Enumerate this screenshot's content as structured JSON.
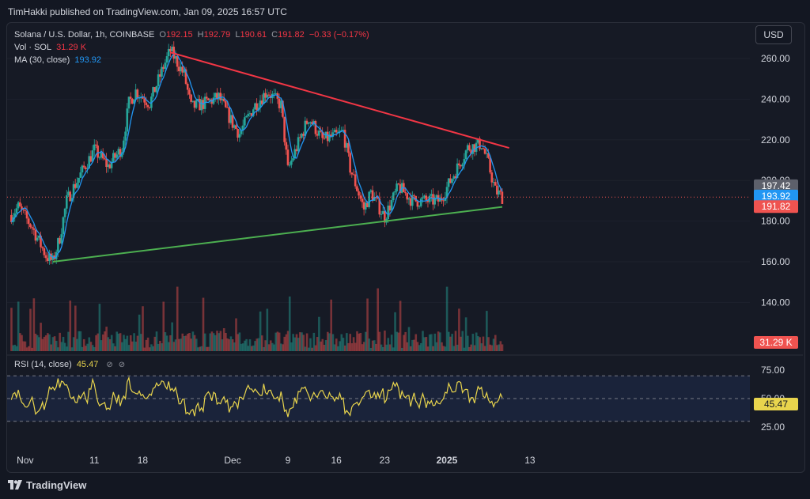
{
  "publisher_line": "TimHakki published on TradingView.com, Jan 09, 2025 16:57 UTC",
  "legend": {
    "symbol": "Solana / U.S. Dollar, 1h, COINBASE",
    "o_label": "O",
    "o_value": "192.15",
    "h_label": "H",
    "h_value": "192.79",
    "l_label": "L",
    "l_value": "190.61",
    "c_label": "C",
    "c_value": "191.82",
    "change": "−0.33 (−0.17%)",
    "vol_label": "Vol · SOL",
    "vol_value": "31.29 K",
    "ma_label": "MA (30, close)",
    "ma_value": "193.92",
    "rsi_label": "RSI (14, close)",
    "rsi_value": "45.47"
  },
  "currency_button": "USD",
  "price_badges": {
    "high_line": "197.42",
    "ma": "193.92",
    "last": "191.82",
    "volume": "31.29 K",
    "rsi": "45.47"
  },
  "colors": {
    "background": "#131722",
    "up": "#26a69a",
    "down": "#ef5350",
    "ma": "#2196f3",
    "resistance": "#f23645",
    "support": "#4caf50",
    "rsi": "#e8d44d",
    "rsi_band": "#1e2a4a"
  },
  "footer_brand": "TradingView",
  "chart_data": {
    "type": "candlestick",
    "price_axis": {
      "ticks": [
        "260.00",
        "240.00",
        "220.00",
        "200.00",
        "180.00",
        "160.00",
        "140.00"
      ],
      "range": [
        131,
        266
      ]
    },
    "rsi_axis": {
      "ticks": [
        "75.00",
        "50.00",
        "25.00"
      ],
      "upper_band": 70,
      "middle": 50,
      "lower_band": 30
    },
    "time_axis": [
      "Nov",
      "11",
      "18",
      "Dec",
      "9",
      "16",
      "23",
      "2025",
      "13"
    ],
    "price_keypoints": [
      {
        "t": "Oct 30",
        "p": 183
      },
      {
        "t": "Oct 31",
        "p": 187
      },
      {
        "t": "Nov 02",
        "p": 177
      },
      {
        "t": "Nov 04",
        "p": 163
      },
      {
        "t": "Nov 05",
        "p": 160
      },
      {
        "t": "Nov 06",
        "p": 172
      },
      {
        "t": "Nov 07",
        "p": 190
      },
      {
        "t": "Nov 09",
        "p": 203
      },
      {
        "t": "Nov 11",
        "p": 215
      },
      {
        "t": "Nov 13",
        "p": 207
      },
      {
        "t": "Nov 15",
        "p": 216
      },
      {
        "t": "Nov 16",
        "p": 238
      },
      {
        "t": "Nov 17",
        "p": 244
      },
      {
        "t": "Nov 19",
        "p": 238
      },
      {
        "t": "Nov 21",
        "p": 256
      },
      {
        "t": "Nov 22",
        "p": 264
      },
      {
        "t": "Nov 24",
        "p": 252
      },
      {
        "t": "Nov 25",
        "p": 236
      },
      {
        "t": "Nov 27",
        "p": 238
      },
      {
        "t": "Nov 29",
        "p": 241
      },
      {
        "t": "Dec 01",
        "p": 228
      },
      {
        "t": "Dec 02",
        "p": 223
      },
      {
        "t": "Dec 04",
        "p": 236
      },
      {
        "t": "Dec 06",
        "p": 244
      },
      {
        "t": "Dec 08",
        "p": 237
      },
      {
        "t": "Dec 09",
        "p": 205
      },
      {
        "t": "Dec 10",
        "p": 214
      },
      {
        "t": "Dec 12",
        "p": 231
      },
      {
        "t": "Dec 14",
        "p": 220
      },
      {
        "t": "Dec 16",
        "p": 222
      },
      {
        "t": "Dec 17",
        "p": 224
      },
      {
        "t": "Dec 18",
        "p": 206
      },
      {
        "t": "Dec 20",
        "p": 186
      },
      {
        "t": "Dec 21",
        "p": 194
      },
      {
        "t": "Dec 23",
        "p": 182
      },
      {
        "t": "Dec 25",
        "p": 197
      },
      {
        "t": "Dec 27",
        "p": 190
      },
      {
        "t": "Dec 29",
        "p": 190
      },
      {
        "t": "Dec 31",
        "p": 190
      },
      {
        "t": "Jan 02",
        "p": 203
      },
      {
        "t": "Jan 04",
        "p": 216
      },
      {
        "t": "Jan 06",
        "p": 218
      },
      {
        "t": "Jan 07",
        "p": 208
      },
      {
        "t": "Jan 08",
        "p": 195
      },
      {
        "t": "Jan 09",
        "p": 191.82
      }
    ],
    "trendlines": [
      {
        "name": "resistance",
        "from": {
          "t": "Nov 22",
          "p": 263
        },
        "to": {
          "t": "Jan 10",
          "p": 216
        }
      },
      {
        "name": "support",
        "from": {
          "t": "Nov 05",
          "p": 160
        },
        "to": {
          "t": "Jan 09",
          "p": 187
        }
      }
    ]
  }
}
